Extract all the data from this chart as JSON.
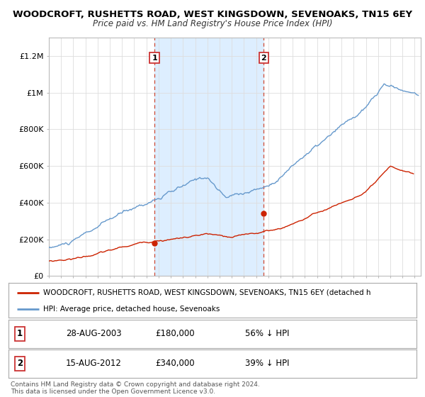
{
  "title": "WOODCROFT, RUSHETTS ROAD, WEST KINGSDOWN, SEVENOAKS, TN15 6EY",
  "subtitle": "Price paid vs. HM Land Registry's House Price Index (HPI)",
  "ylim": [
    0,
    1300000
  ],
  "yticks": [
    0,
    200000,
    400000,
    600000,
    800000,
    1000000,
    1200000
  ],
  "ytick_labels": [
    "£0",
    "£200K",
    "£400K",
    "£600K",
    "£800K",
    "£1M",
    "£1.2M"
  ],
  "bg_color": "#ffffff",
  "plot_bg": "#ffffff",
  "grid_color": "#dddddd",
  "shading_color": "#ddeeff",
  "sale1_date": 2003.66,
  "sale1_price": 180000,
  "sale1_label": "1",
  "sale2_date": 2012.62,
  "sale2_price": 340000,
  "sale2_label": "2",
  "legend_line1": "WOODCROFT, RUSHETTS ROAD, WEST KINGSDOWN, SEVENOAKS, TN15 6EY (detached h",
  "legend_line2": "HPI: Average price, detached house, Sevenoaks",
  "table_row1": [
    "1",
    "28-AUG-2003",
    "£180,000",
    "56% ↓ HPI"
  ],
  "table_row2": [
    "2",
    "15-AUG-2012",
    "£340,000",
    "39% ↓ HPI"
  ],
  "footnote": "Contains HM Land Registry data © Crown copyright and database right 2024.\nThis data is licensed under the Open Government Licence v3.0.",
  "red_line_color": "#cc2200",
  "blue_line_color": "#6699cc",
  "title_fontsize": 9.5,
  "subtitle_fontsize": 8.5,
  "xmin": 1995,
  "xmax": 2025.5
}
